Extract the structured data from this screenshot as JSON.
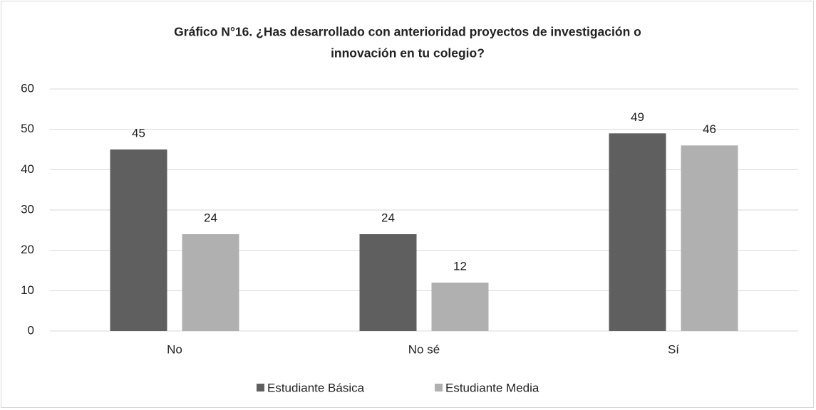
{
  "chart_data": {
    "type": "bar",
    "title": [
      "Gráfico N°16. ¿Has desarrollado con anterioridad proyectos de investigación o",
      "innovación en tu colegio?"
    ],
    "categories": [
      "No",
      "No sé",
      "Sí"
    ],
    "series": [
      {
        "name": "Estudiante Básica",
        "color": "#5f5f5f",
        "values": [
          45,
          24,
          49
        ]
      },
      {
        "name": "Estudiante Media",
        "color": "#b0b0b0",
        "values": [
          24,
          12,
          46
        ]
      }
    ],
    "ylim": [
      0,
      60
    ],
    "yticks": [
      0,
      10,
      20,
      30,
      40,
      50,
      60
    ],
    "grid": true,
    "legend": "bottom"
  }
}
